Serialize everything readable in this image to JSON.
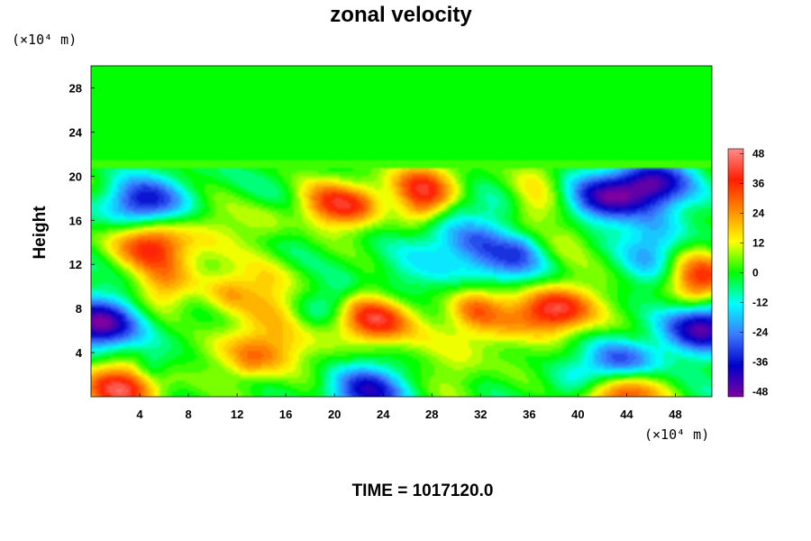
{
  "chart_data": {
    "type": "heatmap",
    "title": "zonal velocity",
    "ylabel": "Height",
    "x_unit_label": "(×10⁴ m)",
    "y_unit_label": "(×10⁴ m)",
    "time_label": "TIME = 1017120.0",
    "xlim": [
      0,
      51
    ],
    "ylim": [
      0,
      30
    ],
    "x_ticks": [
      4,
      8,
      12,
      16,
      20,
      24,
      28,
      32,
      36,
      40,
      44,
      48
    ],
    "y_ticks": [
      4,
      8,
      12,
      16,
      20,
      24,
      28
    ],
    "colorbar": {
      "range": [
        -50,
        50
      ],
      "ticks": [
        48,
        36,
        24,
        12,
        0,
        -12,
        -24,
        -36,
        -48
      ]
    },
    "color_stops": [
      "#7f00a0",
      "#0000c8",
      "#3c78ff",
      "#00ffff",
      "#00ff00",
      "#ffff00",
      "#ff8c00",
      "#ff1e00",
      "#ff8c8c"
    ],
    "features": [
      {
        "x": 38,
        "y": 7.8,
        "value": 45
      },
      {
        "x": 23,
        "y": 7,
        "value": 40
      },
      {
        "x": 2.5,
        "y": 0.8,
        "value": 42
      },
      {
        "x": 43.5,
        "y": 0.3,
        "value": 40
      },
      {
        "x": 20,
        "y": 17.5,
        "value": 35
      },
      {
        "x": 27,
        "y": 19,
        "value": 38
      },
      {
        "x": 5,
        "y": 14,
        "value": 36
      },
      {
        "x": 50,
        "y": 11,
        "value": 32
      },
      {
        "x": 46,
        "y": 19.2,
        "value": -45
      },
      {
        "x": 42,
        "y": 18,
        "value": -35
      },
      {
        "x": 0.3,
        "y": 6.5,
        "value": -48
      },
      {
        "x": 50.5,
        "y": 6.3,
        "value": -46
      },
      {
        "x": 4,
        "y": 17.5,
        "value": -32
      },
      {
        "x": 22.5,
        "y": 0.5,
        "value": -38
      },
      {
        "x": 43.5,
        "y": 3,
        "value": -35
      },
      {
        "x": 34,
        "y": 12,
        "value": -20
      },
      {
        "x": 14,
        "y": 4,
        "value": 25
      }
    ],
    "upper_layer_value": 0
  }
}
